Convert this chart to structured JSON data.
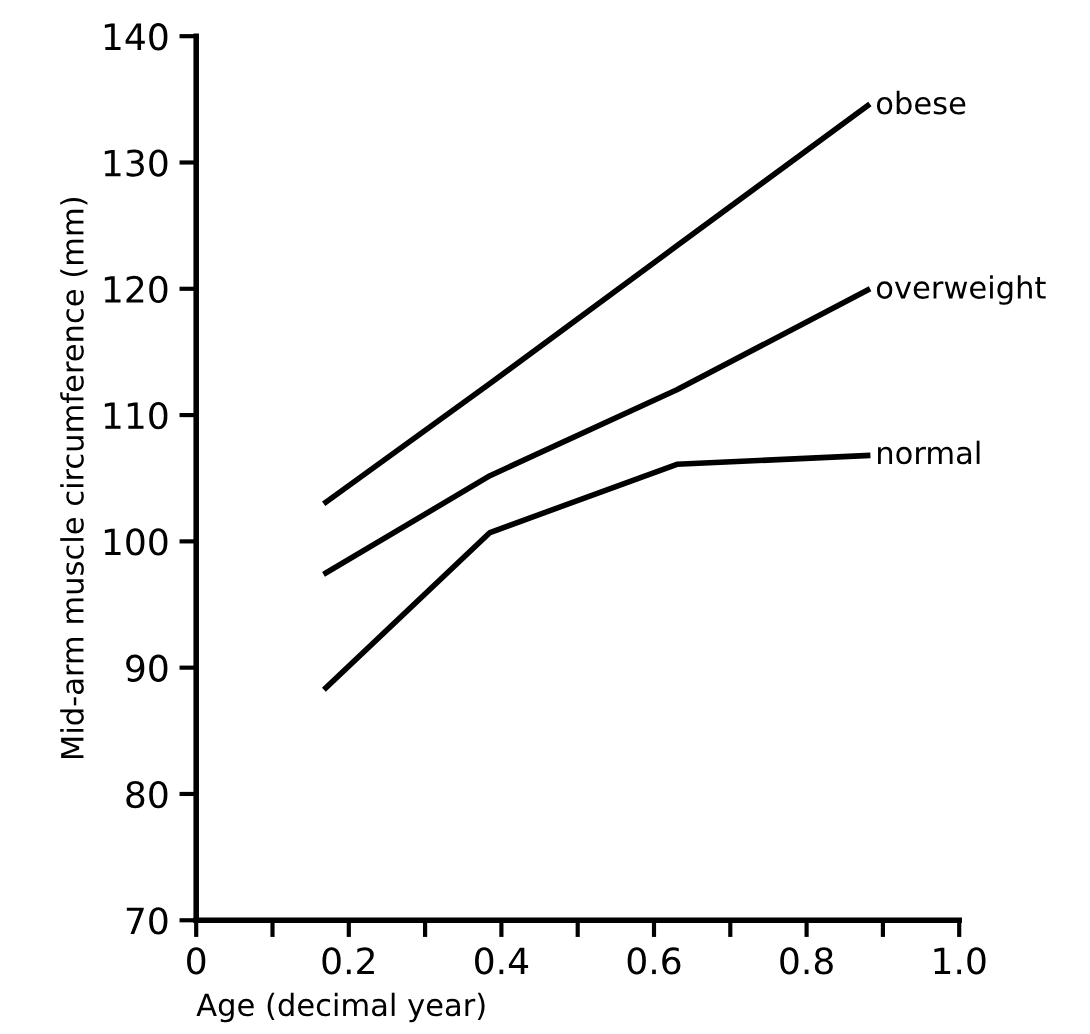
{
  "chart_data": {
    "type": "line",
    "xlabel": "Age (decimal year)",
    "ylabel": "Mid-arm muscle circumference (mm)",
    "x": [
      0.17,
      0.385,
      0.63,
      0.88
    ],
    "series": [
      {
        "name": "obese",
        "color": "#000000",
        "values": [
          103.1,
          112.5,
          123.4,
          134.5
        ]
      },
      {
        "name": "overweight",
        "color": "#000000",
        "values": [
          97.5,
          105.2,
          112.0,
          119.9
        ]
      },
      {
        "name": "normal",
        "color": "#000000",
        "values": [
          88.4,
          100.7,
          106.1,
          106.8
        ]
      }
    ],
    "xlim": [
      0,
      1.0
    ],
    "ylim": [
      70,
      140
    ],
    "xticks": [
      0,
      {
        "value": 0.1,
        "label": null
      },
      0.2,
      {
        "value": 0.3,
        "label": null
      },
      0.4,
      {
        "value": 0.5,
        "label": null
      },
      0.6,
      {
        "value": 0.7,
        "label": null
      },
      0.8,
      {
        "value": 0.9,
        "label": null
      },
      {
        "value": 1.0,
        "label": "1.0"
      }
    ],
    "yticks": [
      70,
      80,
      90,
      100,
      110,
      120,
      130,
      140
    ],
    "grid": false,
    "legend": false,
    "marker": "none",
    "line_style": "solid"
  }
}
